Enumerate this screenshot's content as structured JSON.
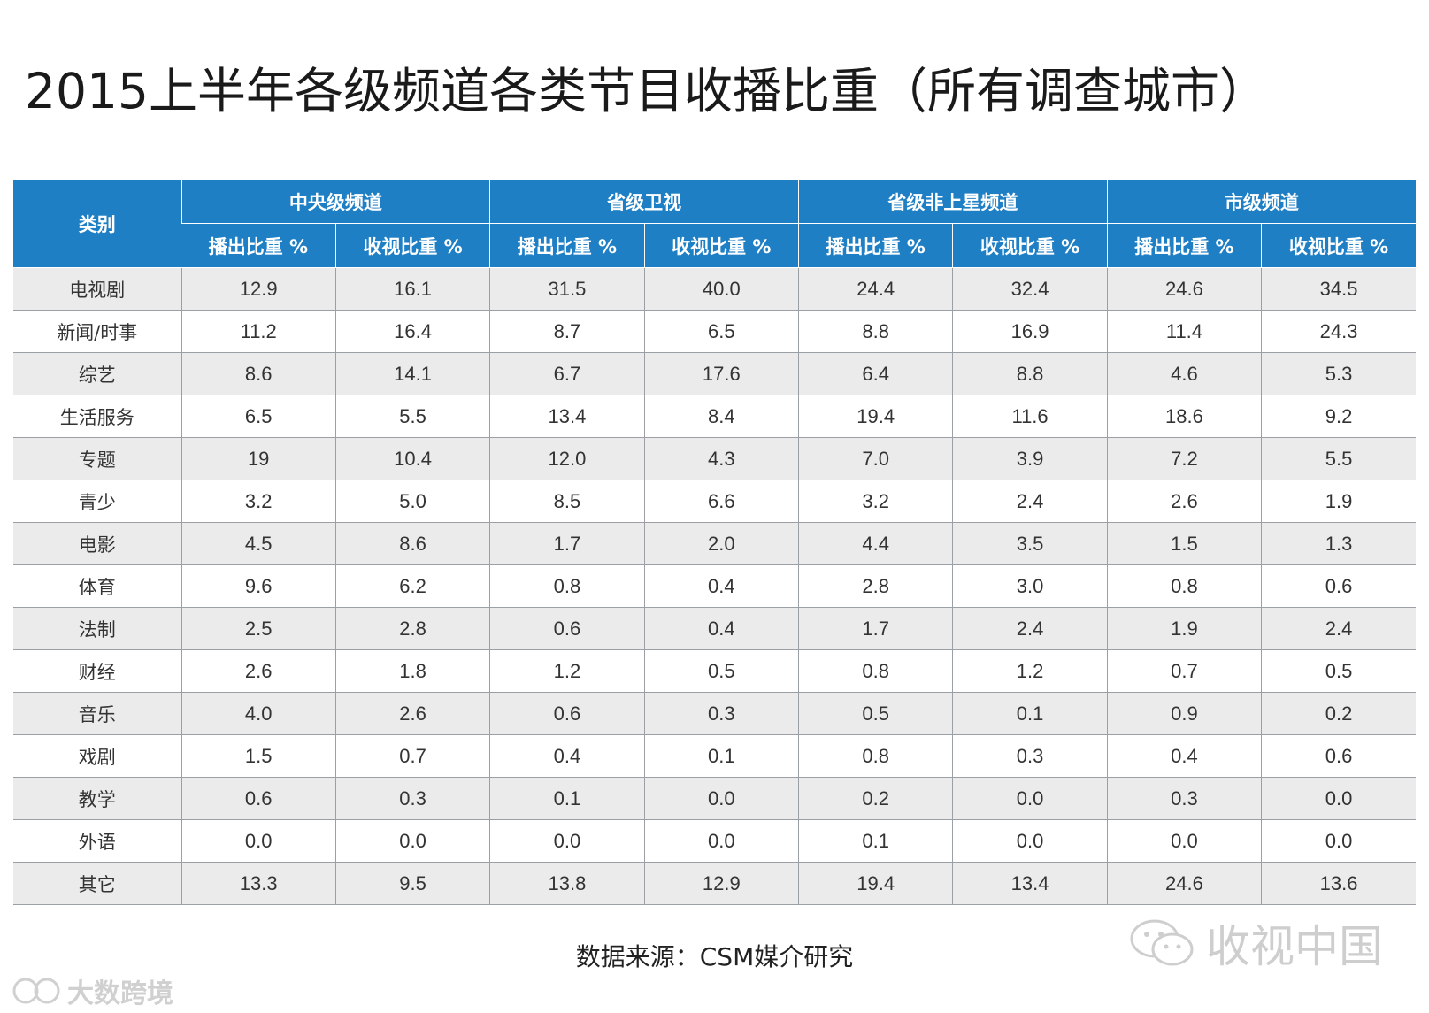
{
  "title": "2015上半年各级频道各类节目收播比重（所有调查城市）",
  "header": {
    "category_label": "类别",
    "groups": [
      "中央级频道",
      "省级卫视",
      "省级非上星频道",
      "市级频道"
    ],
    "sub_labels": [
      "播出比重 %",
      "收视比重 %"
    ]
  },
  "rows": [
    {
      "cat": "电视剧",
      "vals": [
        "12.9",
        "16.1",
        "31.5",
        "40.0",
        "24.4",
        "32.4",
        "24.6",
        "34.5"
      ]
    },
    {
      "cat": "新闻/时事",
      "vals": [
        "11.2",
        "16.4",
        "8.7",
        "6.5",
        "8.8",
        "16.9",
        "11.4",
        "24.3"
      ]
    },
    {
      "cat": "综艺",
      "vals": [
        "8.6",
        "14.1",
        "6.7",
        "17.6",
        "6.4",
        "8.8",
        "4.6",
        "5.3"
      ]
    },
    {
      "cat": "生活服务",
      "vals": [
        "6.5",
        "5.5",
        "13.4",
        "8.4",
        "19.4",
        "11.6",
        "18.6",
        "9.2"
      ]
    },
    {
      "cat": "专题",
      "vals": [
        "19",
        "10.4",
        "12.0",
        "4.3",
        "7.0",
        "3.9",
        "7.2",
        "5.5"
      ]
    },
    {
      "cat": "青少",
      "vals": [
        "3.2",
        "5.0",
        "8.5",
        "6.6",
        "3.2",
        "2.4",
        "2.6",
        "1.9"
      ]
    },
    {
      "cat": "电影",
      "vals": [
        "4.5",
        "8.6",
        "1.7",
        "2.0",
        "4.4",
        "3.5",
        "1.5",
        "1.3"
      ]
    },
    {
      "cat": "体育",
      "vals": [
        "9.6",
        "6.2",
        "0.8",
        "0.4",
        "2.8",
        "3.0",
        "0.8",
        "0.6"
      ]
    },
    {
      "cat": "法制",
      "vals": [
        "2.5",
        "2.8",
        "0.6",
        "0.4",
        "1.7",
        "2.4",
        "1.9",
        "2.4"
      ]
    },
    {
      "cat": "财经",
      "vals": [
        "2.6",
        "1.8",
        "1.2",
        "0.5",
        "0.8",
        "1.2",
        "0.7",
        "0.5"
      ]
    },
    {
      "cat": "音乐",
      "vals": [
        "4.0",
        "2.6",
        "0.6",
        "0.3",
        "0.5",
        "0.1",
        "0.9",
        "0.2"
      ]
    },
    {
      "cat": "戏剧",
      "vals": [
        "1.5",
        "0.7",
        "0.4",
        "0.1",
        "0.8",
        "0.3",
        "0.4",
        "0.6"
      ]
    },
    {
      "cat": "教学",
      "vals": [
        "0.6",
        "0.3",
        "0.1",
        "0.0",
        "0.2",
        "0.0",
        "0.3",
        "0.0"
      ]
    },
    {
      "cat": "外语",
      "vals": [
        "0.0",
        "0.0",
        "0.0",
        "0.0",
        "0.1",
        "0.0",
        "0.0",
        "0.0"
      ]
    },
    {
      "cat": "其它",
      "vals": [
        "13.3",
        "9.5",
        "13.8",
        "12.9",
        "19.4",
        "13.4",
        "24.6",
        "13.6"
      ]
    }
  ],
  "source": "数据来源：CSM媒介研究",
  "watermarks": {
    "right": "收视中国",
    "right_icon": "wechat-logo-icon",
    "left": "大数跨境",
    "left_icon": "brand-logo-icon"
  },
  "colors": {
    "header_bg": "#1f7fc5",
    "header_text": "#ffffff",
    "row_alt_bg": "#ebebeb",
    "grid_line": "#9aa0a6"
  },
  "chart_data": {
    "type": "table",
    "title": "2015上半年各级频道各类节目收播比重（所有调查城市）",
    "columns": [
      "类别",
      "中央级频道 播出比重 %",
      "中央级频道 收视比重 %",
      "省级卫视 播出比重 %",
      "省级卫视 收视比重 %",
      "省级非上星频道 播出比重 %",
      "省级非上星频道 收视比重 %",
      "市级频道 播出比重 %",
      "市级频道 收视比重 %"
    ],
    "rows": [
      [
        "电视剧",
        12.9,
        16.1,
        31.5,
        40.0,
        24.4,
        32.4,
        24.6,
        34.5
      ],
      [
        "新闻/时事",
        11.2,
        16.4,
        8.7,
        6.5,
        8.8,
        16.9,
        11.4,
        24.3
      ],
      [
        "综艺",
        8.6,
        14.1,
        6.7,
        17.6,
        6.4,
        8.8,
        4.6,
        5.3
      ],
      [
        "生活服务",
        6.5,
        5.5,
        13.4,
        8.4,
        19.4,
        11.6,
        18.6,
        9.2
      ],
      [
        "专题",
        19,
        10.4,
        12.0,
        4.3,
        7.0,
        3.9,
        7.2,
        5.5
      ],
      [
        "青少",
        3.2,
        5.0,
        8.5,
        6.6,
        3.2,
        2.4,
        2.6,
        1.9
      ],
      [
        "电影",
        4.5,
        8.6,
        1.7,
        2.0,
        4.4,
        3.5,
        1.5,
        1.3
      ],
      [
        "体育",
        9.6,
        6.2,
        0.8,
        0.4,
        2.8,
        3.0,
        0.8,
        0.6
      ],
      [
        "法制",
        2.5,
        2.8,
        0.6,
        0.4,
        1.7,
        2.4,
        1.9,
        2.4
      ],
      [
        "财经",
        2.6,
        1.8,
        1.2,
        0.5,
        0.8,
        1.2,
        0.7,
        0.5
      ],
      [
        "音乐",
        4.0,
        2.6,
        0.6,
        0.3,
        0.5,
        0.1,
        0.9,
        0.2
      ],
      [
        "戏剧",
        1.5,
        0.7,
        0.4,
        0.1,
        0.8,
        0.3,
        0.4,
        0.6
      ],
      [
        "教学",
        0.6,
        0.3,
        0.1,
        0.0,
        0.2,
        0.0,
        0.3,
        0.0
      ],
      [
        "外语",
        0.0,
        0.0,
        0.0,
        0.0,
        0.1,
        0.0,
        0.0,
        0.0
      ],
      [
        "其它",
        13.3,
        9.5,
        13.8,
        12.9,
        19.4,
        13.4,
        24.6,
        13.6
      ]
    ]
  }
}
